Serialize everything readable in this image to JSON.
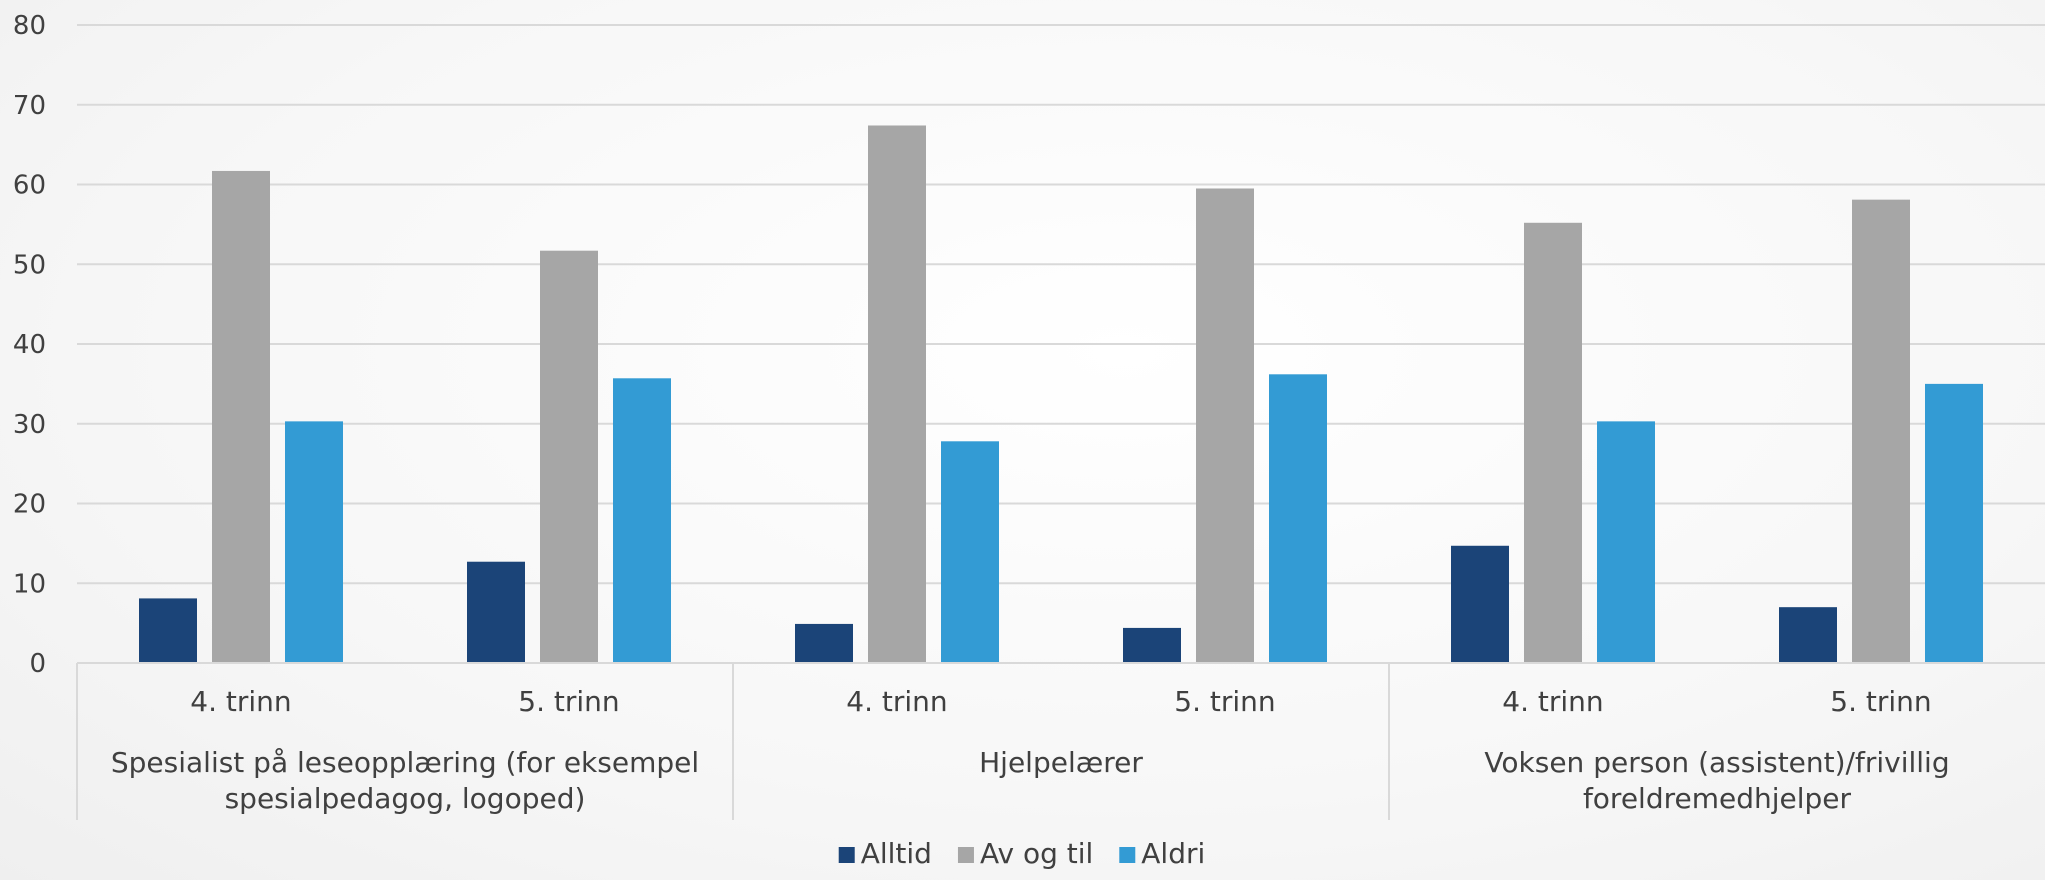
{
  "chart_data": {
    "type": "bar",
    "groups": [
      {
        "label_lines": [
          "Spesialist på leseopplæring (for eksempel",
          "spesialpedagog, logoped)"
        ],
        "categories": [
          "4. trinn",
          "5. trinn"
        ]
      },
      {
        "label_lines": [
          "Hjelpelærer"
        ],
        "categories": [
          "4. trinn",
          "5. trinn"
        ]
      },
      {
        "label_lines": [
          "Voksen person (assistent)/frivillig",
          "foreldremedhjelper"
        ],
        "categories": [
          "4. trinn",
          "5. trinn"
        ]
      }
    ],
    "series": [
      {
        "name": "Alltid",
        "color": "#1b4478",
        "values": [
          8.1,
          12.7,
          4.9,
          4.4,
          14.7,
          7.0
        ]
      },
      {
        "name": "Av og til",
        "color": "#a6a6a6",
        "values": [
          61.7,
          51.7,
          67.4,
          59.5,
          55.2,
          58.1
        ]
      },
      {
        "name": "Aldri",
        "color": "#339bd4",
        "values": [
          30.3,
          35.7,
          27.8,
          36.2,
          30.3,
          35.0
        ]
      }
    ],
    "y_ticks": [
      "0",
      "10",
      "20",
      "30",
      "40",
      "50",
      "60",
      "70",
      "80"
    ],
    "ylim": [
      0,
      80
    ],
    "grid": true,
    "legend_position": "bottom-center"
  }
}
